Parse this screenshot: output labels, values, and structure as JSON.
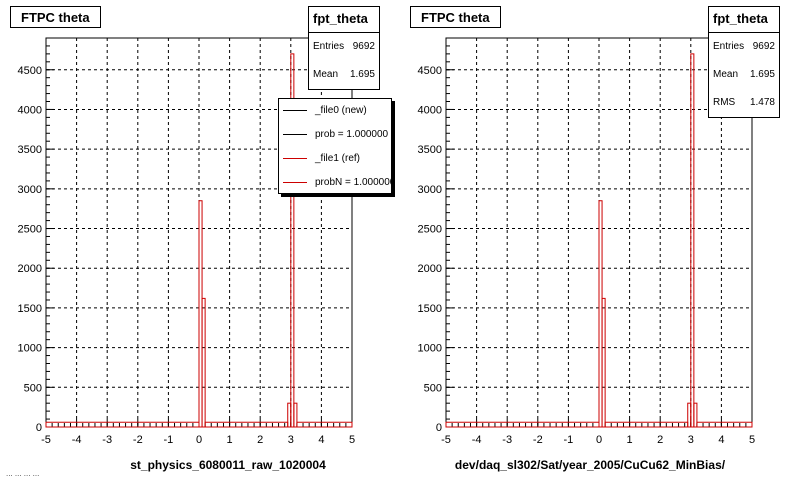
{
  "footer_text": "... ... ... ...",
  "chart_data": [
    {
      "type": "bar",
      "title": "FTPC theta",
      "xlabel": "st_physics_6080011_raw_1020004",
      "ylabel": "",
      "xlim": [
        -5,
        5
      ],
      "ylim": [
        0,
        4900
      ],
      "xticks": [
        -5,
        -4,
        -3,
        -2,
        -1,
        0,
        1,
        2,
        3,
        4,
        5
      ],
      "yticks": [
        0,
        500,
        1000,
        1500,
        2000,
        2500,
        3000,
        3500,
        4000,
        4500
      ],
      "grid": true,
      "stats": {
        "name": "fpt_theta",
        "rows": [
          {
            "label": "Entries",
            "value": "9692"
          },
          {
            "label": "Mean",
            "value": "1.695"
          }
        ]
      },
      "legend": {
        "placement": "top-right",
        "entries": [
          {
            "label": "_file0 (new)",
            "color": "#000000"
          },
          {
            "label": "prob = 1.000000",
            "color": "#000000"
          },
          {
            "label": "_file1 (ref)",
            "color": "#cc0000"
          },
          {
            "label": "probN = 1.000000",
            "color": "#cc0000"
          }
        ]
      },
      "series": [
        {
          "color": "#cc0000",
          "bins": [
            {
              "x0": -5.0,
              "x1": 0.0,
              "y": 60
            },
            {
              "x0": 0.0,
              "x1": 0.1,
              "y": 2850
            },
            {
              "x0": 0.1,
              "x1": 0.2,
              "y": 1620
            },
            {
              "x0": 0.2,
              "x1": 2.9,
              "y": 60
            },
            {
              "x0": 2.9,
              "x1": 3.0,
              "y": 300
            },
            {
              "x0": 3.0,
              "x1": 3.1,
              "y": 4700
            },
            {
              "x0": 3.1,
              "x1": 3.2,
              "y": 300
            },
            {
              "x0": 3.2,
              "x1": 5.0,
              "y": 60
            }
          ]
        }
      ]
    },
    {
      "type": "bar",
      "title": "FTPC theta",
      "xlabel": "dev/daq_sl302/Sat/year_2005/CuCu62_MinBias/",
      "ylabel": "",
      "xlim": [
        -5,
        5
      ],
      "ylim": [
        0,
        4900
      ],
      "xticks": [
        -5,
        -4,
        -3,
        -2,
        -1,
        0,
        1,
        2,
        3,
        4,
        5
      ],
      "yticks": [
        0,
        500,
        1000,
        1500,
        2000,
        2500,
        3000,
        3500,
        4000,
        4500
      ],
      "grid": true,
      "stats": {
        "name": "fpt_theta",
        "rows": [
          {
            "label": "Entries",
            "value": "9692"
          },
          {
            "label": "Mean",
            "value": "1.695"
          },
          {
            "label": "RMS",
            "value": "1.478"
          }
        ]
      },
      "series": [
        {
          "color": "#cc0000",
          "bins": [
            {
              "x0": -5.0,
              "x1": 0.0,
              "y": 60
            },
            {
              "x0": 0.0,
              "x1": 0.1,
              "y": 2850
            },
            {
              "x0": 0.1,
              "x1": 0.2,
              "y": 1620
            },
            {
              "x0": 0.2,
              "x1": 2.9,
              "y": 60
            },
            {
              "x0": 2.9,
              "x1": 3.0,
              "y": 300
            },
            {
              "x0": 3.0,
              "x1": 3.1,
              "y": 4700
            },
            {
              "x0": 3.1,
              "x1": 3.2,
              "y": 300
            },
            {
              "x0": 3.2,
              "x1": 5.0,
              "y": 60
            }
          ]
        }
      ]
    }
  ]
}
